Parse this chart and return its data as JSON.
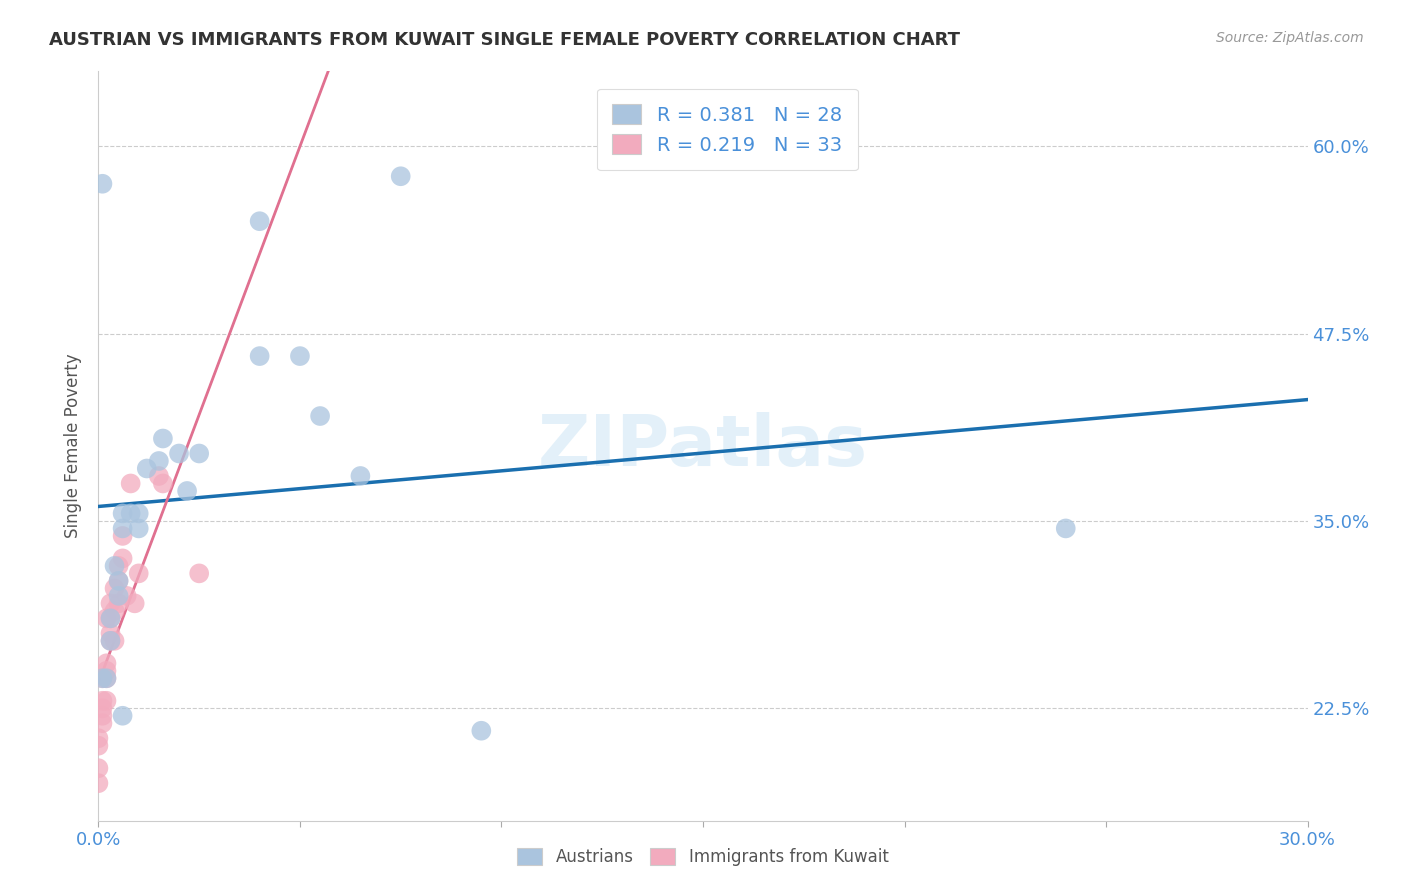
{
  "title": "AUSTRIAN VS IMMIGRANTS FROM KUWAIT SINGLE FEMALE POVERTY CORRELATION CHART",
  "source": "Source: ZipAtlas.com",
  "ylabel_label": "Single Female Poverty",
  "ylabel_ticks": [
    "22.5%",
    "35.0%",
    "47.5%",
    "60.0%"
  ],
  "watermark": "ZIPatlas",
  "legend_blue_r": "R = 0.381",
  "legend_blue_n": "N = 28",
  "legend_pink_r": "R = 0.219",
  "legend_pink_n": "N = 33",
  "blue_color": "#aac4de",
  "pink_color": "#f2abbe",
  "blue_line_color": "#1a6faf",
  "pink_line_color": "#e07090",
  "title_color": "#333333",
  "axis_color": "#4a90d9",
  "x_min": 0.0,
  "x_max": 0.3,
  "y_min": 0.15,
  "y_max": 0.65,
  "austrians_x": [
    0.001,
    0.001,
    0.002,
    0.003,
    0.003,
    0.004,
    0.005,
    0.005,
    0.006,
    0.006,
    0.006,
    0.008,
    0.01,
    0.01,
    0.012,
    0.015,
    0.016,
    0.02,
    0.022,
    0.025,
    0.04,
    0.04,
    0.05,
    0.055,
    0.065,
    0.075,
    0.095,
    0.24
  ],
  "austrians_y": [
    0.575,
    0.245,
    0.245,
    0.285,
    0.27,
    0.32,
    0.31,
    0.3,
    0.22,
    0.355,
    0.345,
    0.355,
    0.345,
    0.355,
    0.385,
    0.39,
    0.405,
    0.395,
    0.37,
    0.395,
    0.46,
    0.55,
    0.46,
    0.42,
    0.38,
    0.58,
    0.21,
    0.345
  ],
  "kuwait_x": [
    0.0,
    0.0,
    0.0,
    0.0,
    0.001,
    0.001,
    0.001,
    0.001,
    0.001,
    0.002,
    0.002,
    0.002,
    0.002,
    0.002,
    0.003,
    0.003,
    0.003,
    0.003,
    0.004,
    0.004,
    0.004,
    0.005,
    0.005,
    0.005,
    0.006,
    0.006,
    0.007,
    0.008,
    0.009,
    0.01,
    0.015,
    0.016,
    0.025
  ],
  "kuwait_y": [
    0.175,
    0.185,
    0.2,
    0.205,
    0.215,
    0.22,
    0.225,
    0.23,
    0.245,
    0.23,
    0.245,
    0.25,
    0.255,
    0.285,
    0.27,
    0.275,
    0.285,
    0.295,
    0.27,
    0.29,
    0.305,
    0.295,
    0.31,
    0.32,
    0.325,
    0.34,
    0.3,
    0.375,
    0.295,
    0.315,
    0.38,
    0.375,
    0.315
  ],
  "blue_line_start_x": 0.0,
  "blue_line_end_x": 0.3,
  "pink_line_start_x": 0.0,
  "pink_line_end_x": 0.3
}
